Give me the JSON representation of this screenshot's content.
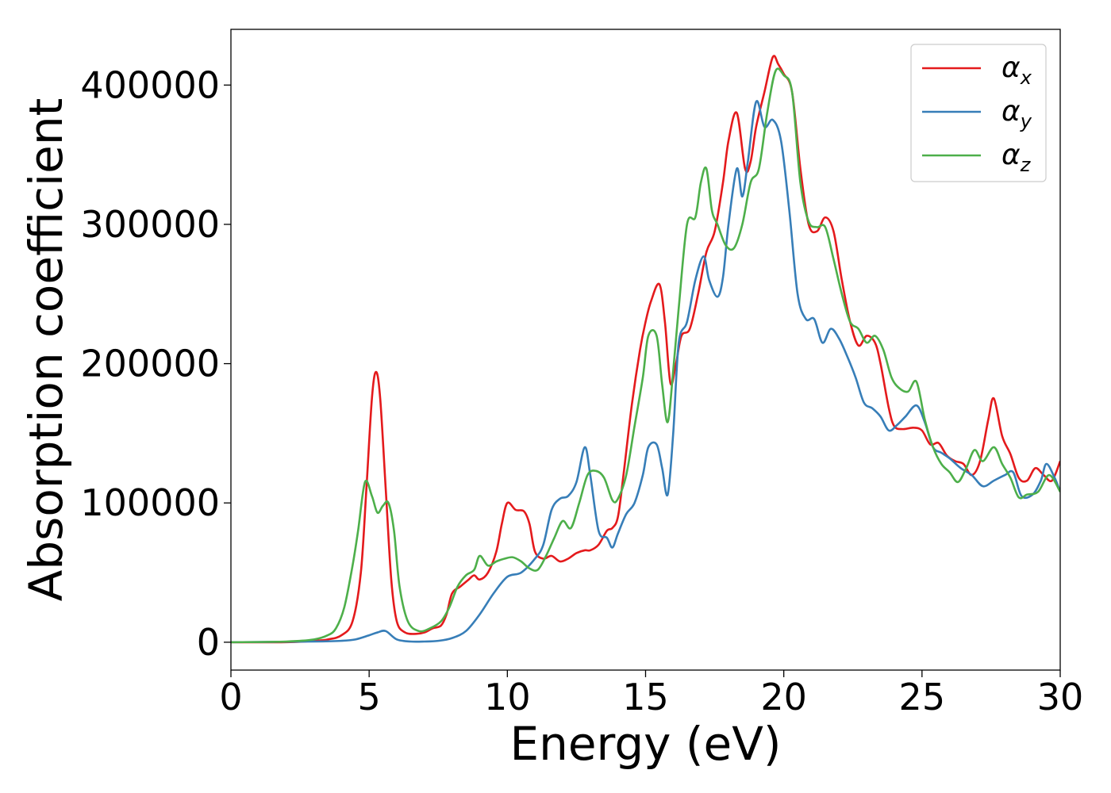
{
  "chart_data": {
    "type": "line",
    "xlabel": "Energy (eV)",
    "ylabel": "Absorption coefficient",
    "xlim": [
      0,
      30
    ],
    "ylim": [
      -20000,
      440000
    ],
    "xticks": [
      0,
      5,
      10,
      15,
      20,
      25,
      30
    ],
    "xtick_labels": [
      "0",
      "5",
      "10",
      "15",
      "20",
      "25",
      "30"
    ],
    "yticks": [
      0,
      100000,
      200000,
      300000,
      400000
    ],
    "ytick_labels": [
      "0",
      "100000",
      "200000",
      "300000",
      "400000"
    ],
    "grid": false,
    "legend_position": "top-right",
    "series": [
      {
        "name": "α",
        "subscript": "x",
        "color": "#e41a1c",
        "x": [
          0,
          2,
          3,
          3.5,
          4,
          4.4,
          4.7,
          4.9,
          5.1,
          5.25,
          5.4,
          5.6,
          5.8,
          6.0,
          6.3,
          6.7,
          7.0,
          7.3,
          7.6,
          7.8,
          8.0,
          8.3,
          8.6,
          8.8,
          9.0,
          9.3,
          9.6,
          9.8,
          10.0,
          10.3,
          10.6,
          10.8,
          11.0,
          11.3,
          11.6,
          11.9,
          12.2,
          12.5,
          12.8,
          13.0,
          13.3,
          13.6,
          13.8,
          14.0,
          14.2,
          14.5,
          14.8,
          15.0,
          15.2,
          15.5,
          15.7,
          15.9,
          16.1,
          16.3,
          16.6,
          16.9,
          17.2,
          17.5,
          17.8,
          18.0,
          18.3,
          18.6,
          18.8,
          19.0,
          19.3,
          19.6,
          19.8,
          20.0,
          20.3,
          20.6,
          20.9,
          21.2,
          21.5,
          21.8,
          22.1,
          22.4,
          22.7,
          23.0,
          23.3,
          23.5,
          23.8,
          24.0,
          24.3,
          24.7,
          25.0,
          25.3,
          25.6,
          25.9,
          26.2,
          26.5,
          26.8,
          27.1,
          27.4,
          27.6,
          27.9,
          28.2,
          28.5,
          28.8,
          29.1,
          29.4,
          29.7,
          30.0
        ],
        "y": [
          0,
          0,
          1000,
          2000,
          5000,
          15000,
          50000,
          110000,
          175000,
          194000,
          175000,
          110000,
          45000,
          15000,
          7000,
          6000,
          7000,
          10000,
          12000,
          20000,
          35000,
          40000,
          45000,
          48000,
          45000,
          50000,
          65000,
          85000,
          100000,
          95000,
          94000,
          85000,
          65000,
          60000,
          62000,
          58000,
          60000,
          64000,
          66000,
          66000,
          70000,
          80000,
          82000,
          90000,
          120000,
          170000,
          210000,
          230000,
          245000,
          257000,
          230000,
          186000,
          200000,
          220000,
          225000,
          250000,
          280000,
          295000,
          330000,
          360000,
          380000,
          340000,
          345000,
          370000,
          395000,
          420000,
          415000,
          408000,
          395000,
          340000,
          300000,
          295000,
          305000,
          295000,
          260000,
          230000,
          213000,
          220000,
          215000,
          200000,
          168000,
          155000,
          153000,
          154000,
          152000,
          142000,
          143000,
          134000,
          130000,
          128000,
          120000,
          130000,
          160000,
          175000,
          148000,
          135000,
          118000,
          116000,
          125000,
          120000,
          116000,
          130000
        ]
      },
      {
        "name": "α",
        "subscript": "y",
        "color": "#377eb8",
        "x": [
          0,
          3,
          4,
          4.5,
          5.0,
          5.3,
          5.6,
          6.0,
          6.5,
          7.0,
          7.5,
          8.0,
          8.5,
          9.0,
          9.5,
          10.0,
          10.5,
          11.0,
          11.3,
          11.6,
          11.9,
          12.2,
          12.5,
          12.8,
          13.0,
          13.3,
          13.6,
          13.8,
          14.0,
          14.3,
          14.6,
          14.9,
          15.1,
          15.4,
          15.6,
          15.8,
          16.0,
          16.2,
          16.5,
          16.8,
          17.1,
          17.3,
          17.6,
          17.8,
          18.0,
          18.3,
          18.5,
          18.7,
          19.0,
          19.3,
          19.6,
          19.9,
          20.2,
          20.5,
          20.8,
          21.1,
          21.4,
          21.7,
          22.0,
          22.3,
          22.6,
          22.9,
          23.2,
          23.5,
          23.8,
          24.1,
          24.4,
          24.8,
          25.1,
          25.4,
          25.7,
          26.0,
          26.4,
          26.8,
          27.2,
          27.6,
          28.0,
          28.3,
          28.6,
          29.0,
          29.3,
          29.5,
          29.8,
          30.0
        ],
        "y": [
          0,
          500,
          1000,
          2000,
          5000,
          7000,
          8000,
          2000,
          500,
          500,
          1000,
          3000,
          8000,
          20000,
          35000,
          47000,
          50000,
          60000,
          70000,
          95000,
          103000,
          105000,
          115000,
          140000,
          120000,
          80000,
          75000,
          68000,
          78000,
          92000,
          100000,
          120000,
          140000,
          142000,
          125000,
          106000,
          150000,
          215000,
          230000,
          260000,
          277000,
          260000,
          248000,
          262000,
          300000,
          340000,
          320000,
          345000,
          388000,
          370000,
          375000,
          360000,
          310000,
          250000,
          232000,
          232000,
          215000,
          225000,
          218000,
          205000,
          190000,
          172000,
          168000,
          162000,
          152000,
          156000,
          162000,
          170000,
          158000,
          140000,
          136000,
          132000,
          125000,
          120000,
          112000,
          116000,
          120000,
          122000,
          105000,
          106000,
          116000,
          128000,
          118000,
          108000
        ]
      },
      {
        "name": "α",
        "subscript": "z",
        "color": "#4daf4a",
        "x": [
          0,
          2,
          3,
          3.5,
          3.8,
          4.1,
          4.4,
          4.6,
          4.85,
          5.1,
          5.3,
          5.5,
          5.7,
          5.9,
          6.1,
          6.4,
          6.8,
          7.2,
          7.6,
          7.9,
          8.2,
          8.5,
          8.8,
          9.0,
          9.3,
          9.6,
          9.9,
          10.2,
          10.5,
          10.8,
          11.1,
          11.4,
          11.7,
          12.0,
          12.3,
          12.6,
          12.9,
          13.2,
          13.5,
          13.8,
          14.0,
          14.3,
          14.6,
          14.9,
          15.1,
          15.4,
          15.6,
          15.8,
          16.0,
          16.2,
          16.5,
          16.8,
          17.0,
          17.2,
          17.4,
          17.6,
          17.9,
          18.2,
          18.5,
          18.8,
          19.1,
          19.4,
          19.7,
          20.0,
          20.3,
          20.6,
          20.9,
          21.2,
          21.5,
          21.8,
          22.1,
          22.4,
          22.7,
          23.0,
          23.3,
          23.6,
          23.9,
          24.2,
          24.5,
          24.8,
          25.1,
          25.4,
          25.7,
          26.0,
          26.3,
          26.6,
          26.9,
          27.2,
          27.6,
          27.9,
          28.2,
          28.5,
          28.8,
          29.2,
          29.6,
          30.0
        ],
        "y": [
          0,
          500,
          2000,
          5000,
          10000,
          25000,
          55000,
          80000,
          115000,
          105000,
          93000,
          98000,
          100000,
          80000,
          40000,
          15000,
          8000,
          10000,
          15000,
          25000,
          40000,
          48000,
          52000,
          62000,
          55000,
          58000,
          60000,
          61000,
          58000,
          53000,
          52000,
          62000,
          75000,
          87000,
          82000,
          100000,
          120000,
          123000,
          118000,
          102000,
          103000,
          120000,
          155000,
          190000,
          220000,
          220000,
          185000,
          158000,
          195000,
          240000,
          300000,
          305000,
          330000,
          340000,
          310000,
          300000,
          285000,
          283000,
          300000,
          330000,
          340000,
          380000,
          410000,
          407000,
          395000,
          330000,
          302000,
          298000,
          298000,
          275000,
          250000,
          230000,
          225000,
          215000,
          220000,
          210000,
          190000,
          182000,
          180000,
          187000,
          160000,
          140000,
          128000,
          122000,
          115000,
          125000,
          138000,
          130000,
          140000,
          128000,
          118000,
          104000,
          106000,
          108000,
          120000,
          108000
        ]
      }
    ]
  }
}
